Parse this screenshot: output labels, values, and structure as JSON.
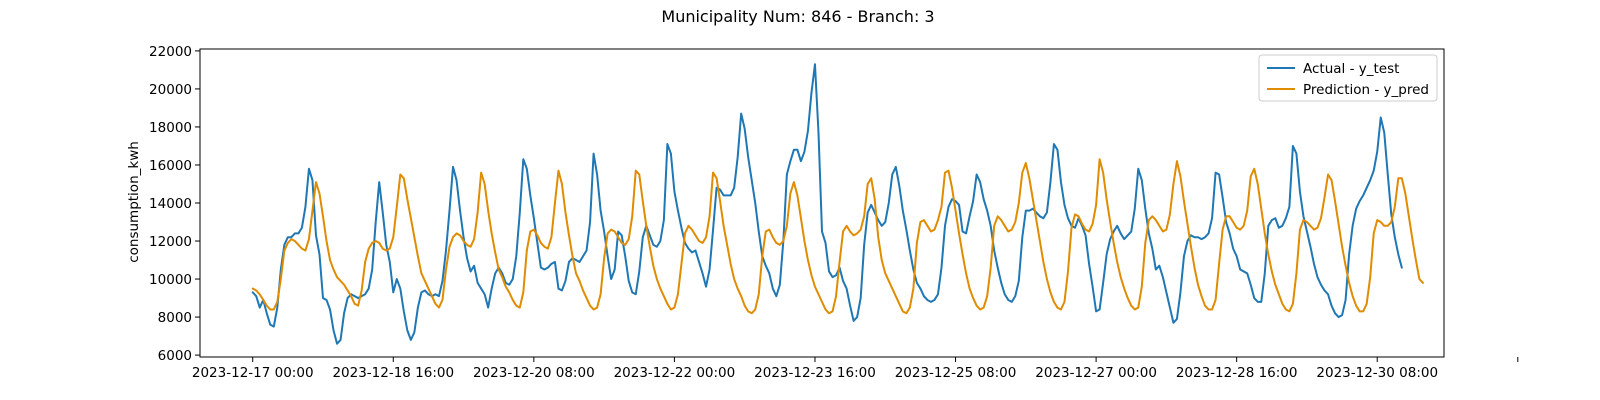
{
  "chart_data": {
    "type": "line",
    "title": "Municipality Num: 846 - Branch: 3",
    "xlabel": "",
    "ylabel": "consumption_kwh",
    "x_start": "2023-12-17 00:00",
    "x_step_hours": 1,
    "x_ticks": [
      "2023-12-17 00:00",
      "2023-12-18 16:00",
      "2023-12-20 08:00",
      "2023-12-22 00:00",
      "2023-12-23 16:00",
      "2023-12-25 08:00",
      "2023-12-27 00:00",
      "2023-12-28 16:00",
      "2023-12-30 08:00",
      ""
    ],
    "y_ticks": [
      6000,
      8000,
      10000,
      12000,
      14000,
      16000,
      18000,
      20000,
      22000
    ],
    "xlim_hours": [
      -15,
      339
    ],
    "ylim": [
      5900,
      22100
    ],
    "grid": false,
    "legend_position": "top-right",
    "series": [
      {
        "name": "Actual - y_test",
        "color": "#1f77b4",
        "values": [
          9300,
          9100,
          8500,
          8900,
          8200,
          7600,
          7500,
          8500,
          10500,
          11800,
          12200,
          12200,
          12400,
          12400,
          12700,
          13800,
          15800,
          15200,
          12300,
          11300,
          9000,
          8900,
          8400,
          7300,
          6600,
          6800,
          8200,
          9000,
          9200,
          9100,
          9000,
          9100,
          9200,
          9500,
          10500,
          13000,
          15100,
          13500,
          11800,
          10900,
          9300,
          10000,
          9500,
          8300,
          7300,
          6800,
          7200,
          8500,
          9300,
          9400,
          9200,
          9100,
          9200,
          9100,
          9900,
          11500,
          13600,
          15900,
          15200,
          13600,
          12200,
          11100,
          10400,
          10700,
          9800,
          9500,
          9200,
          8500,
          9500,
          10300,
          10600,
          10300,
          9800,
          9700,
          10000,
          11200,
          13500,
          16300,
          15800,
          14400,
          13200,
          11900,
          10600,
          10500,
          10600,
          10800,
          10900,
          9500,
          9400,
          9900,
          10900,
          11100,
          11000,
          10900,
          11200,
          11500,
          13000,
          16600,
          15500,
          13600,
          12500,
          11200,
          10000,
          10500,
          12500,
          12300,
          11200,
          9900,
          9300,
          9200,
          10400,
          12200,
          12800,
          12300,
          11800,
          11700,
          12000,
          13100,
          17100,
          16600,
          14600,
          13600,
          12700,
          11900,
          11600,
          11400,
          11500,
          10900,
          10300,
          9600,
          10500,
          12600,
          14800,
          14700,
          14400,
          14400,
          14400,
          14800,
          16400,
          18700,
          17900,
          16400,
          15200,
          14000,
          12500,
          11200,
          10700,
          10300,
          9500,
          9100,
          9700,
          12000,
          15500,
          16200,
          16800,
          16800,
          16200,
          16700,
          17800,
          19800,
          21300,
          17700,
          12500,
          11900,
          10400,
          10100,
          10200,
          10600,
          9900,
          9500,
          8600,
          7800,
          8000,
          9000,
          11800,
          13500,
          13900,
          13500,
          13100,
          12800,
          13000,
          14000,
          15500,
          15900,
          14900,
          13600,
          12600,
          11500,
          10500,
          9800,
          9500,
          9100,
          8900,
          8800,
          8900,
          9200,
          10600,
          12800,
          13800,
          14200,
          14100,
          13900,
          12500,
          12400,
          13300,
          14100,
          15500,
          15100,
          14200,
          13600,
          12800,
          11500,
          10600,
          9800,
          9200,
          8900,
          8800,
          9100,
          9900,
          12200,
          13600,
          13600,
          13700,
          13500,
          13300,
          13200,
          13500,
          15100,
          17100,
          16800,
          15100,
          13900,
          13200,
          12800,
          12700,
          13200,
          12800,
          12300,
          10800,
          9600,
          8300,
          8400,
          9800,
          11300,
          12100,
          12500,
          12800,
          12400,
          12100,
          12300,
          12500,
          13700,
          15800,
          15200,
          13700,
          12400,
          11600,
          10500,
          10700,
          10100,
          9300,
          8500,
          7700,
          7900,
          9300,
          11200,
          12000,
          12300,
          12200,
          12200,
          12100,
          12200,
          12400,
          13200,
          15600,
          15500,
          14300,
          13000,
          12400,
          11600,
          11200,
          10500,
          10400,
          10300,
          9700,
          9000,
          8800,
          8800,
          10300,
          12800,
          13100,
          13200,
          12700,
          12800,
          13200,
          13800,
          17000,
          16600,
          14600,
          13300,
          12500,
          11700,
          10800,
          10100,
          9700,
          9400,
          9200,
          8600,
          8200,
          8000,
          8100,
          8900,
          11300,
          12800,
          13700,
          14100,
          14400,
          14800,
          15200,
          15700,
          16700,
          18500,
          17700,
          15500,
          13400,
          12200,
          11300,
          10600
        ]
      },
      {
        "name": "Prediction - y_pred",
        "color": "#e08c00",
        "values": [
          9500,
          9400,
          9200,
          8900,
          8600,
          8400,
          8400,
          8800,
          10000,
          11500,
          11900,
          12100,
          12000,
          11800,
          11600,
          11500,
          12100,
          13600,
          15100,
          14500,
          13300,
          12000,
          11000,
          10500,
          10100,
          9900,
          9700,
          9400,
          9100,
          8700,
          8600,
          9400,
          10900,
          11600,
          11900,
          12000,
          11900,
          11600,
          11500,
          11600,
          12200,
          13800,
          15500,
          15300,
          14200,
          13200,
          12200,
          11200,
          10300,
          9900,
          9500,
          9100,
          8700,
          8500,
          8900,
          10500,
          11700,
          12200,
          12400,
          12300,
          12000,
          11800,
          11700,
          12100,
          13500,
          15600,
          15000,
          13600,
          12400,
          11400,
          10500,
          10100,
          9600,
          9300,
          8900,
          8600,
          8500,
          9300,
          11500,
          12500,
          12600,
          12300,
          11900,
          11700,
          11600,
          12200,
          14000,
          15700,
          15000,
          13500,
          12300,
          11200,
          10300,
          9900,
          9400,
          9000,
          8600,
          8400,
          8500,
          9200,
          11100,
          12400,
          12600,
          12500,
          12200,
          11900,
          11800,
          12100,
          13300,
          15700,
          15500,
          14100,
          12800,
          11700,
          10700,
          10000,
          9500,
          9100,
          8700,
          8400,
          8500,
          9200,
          10800,
          12400,
          12800,
          12600,
          12300,
          12000,
          11900,
          12200,
          13300,
          15600,
          15300,
          14100,
          12800,
          11800,
          10800,
          10000,
          9500,
          9100,
          8600,
          8300,
          8200,
          8400,
          9200,
          11200,
          12500,
          12600,
          12200,
          11900,
          11800,
          12000,
          12800,
          14500,
          15100,
          14400,
          13200,
          12000,
          11000,
          10200,
          9600,
          9200,
          8800,
          8400,
          8200,
          8300,
          9100,
          10900,
          12500,
          12800,
          12500,
          12300,
          12400,
          12600,
          13300,
          15000,
          15300,
          14200,
          12200,
          11000,
          10300,
          9900,
          9500,
          9100,
          8700,
          8300,
          8200,
          8500,
          9500,
          11900,
          13000,
          13100,
          12800,
          12500,
          12600,
          13100,
          13800,
          15600,
          15700,
          14800,
          13600,
          12400,
          11300,
          10300,
          9500,
          9000,
          8600,
          8400,
          8500,
          9100,
          10600,
          12800,
          13300,
          13100,
          12800,
          12500,
          12600,
          13000,
          14000,
          15600,
          16100,
          15300,
          14200,
          13100,
          12000,
          10900,
          10000,
          9300,
          8800,
          8500,
          8400,
          8800,
          10400,
          12700,
          13400,
          13300,
          12900,
          12600,
          12500,
          12900,
          13900,
          16300,
          15600,
          14200,
          13000,
          11900,
          10900,
          10100,
          9500,
          9000,
          8600,
          8400,
          8500,
          9600,
          11900,
          13100,
          13300,
          13100,
          12800,
          12500,
          12600,
          13400,
          15000,
          16200,
          15400,
          14100,
          12900,
          11700,
          10600,
          9700,
          9100,
          8600,
          8400,
          8400,
          8900,
          10800,
          12600,
          13300,
          13300,
          13000,
          12700,
          12600,
          12800,
          13600,
          15400,
          15800,
          15000,
          13700,
          12400,
          11300,
          10400,
          9700,
          9200,
          8700,
          8400,
          8300,
          8700,
          10300,
          12600,
          13100,
          13000,
          12800,
          12600,
          12700,
          13200,
          14300,
          15500,
          15200,
          14100,
          12900,
          11700,
          10700,
          9800,
          9100,
          8600,
          8300,
          8300,
          8700,
          10100,
          12400,
          13100,
          13000,
          12800,
          12800,
          13000,
          13800,
          15300,
          15300,
          14500,
          13300,
          12100,
          11000,
          10000,
          9800
        ]
      }
    ]
  }
}
